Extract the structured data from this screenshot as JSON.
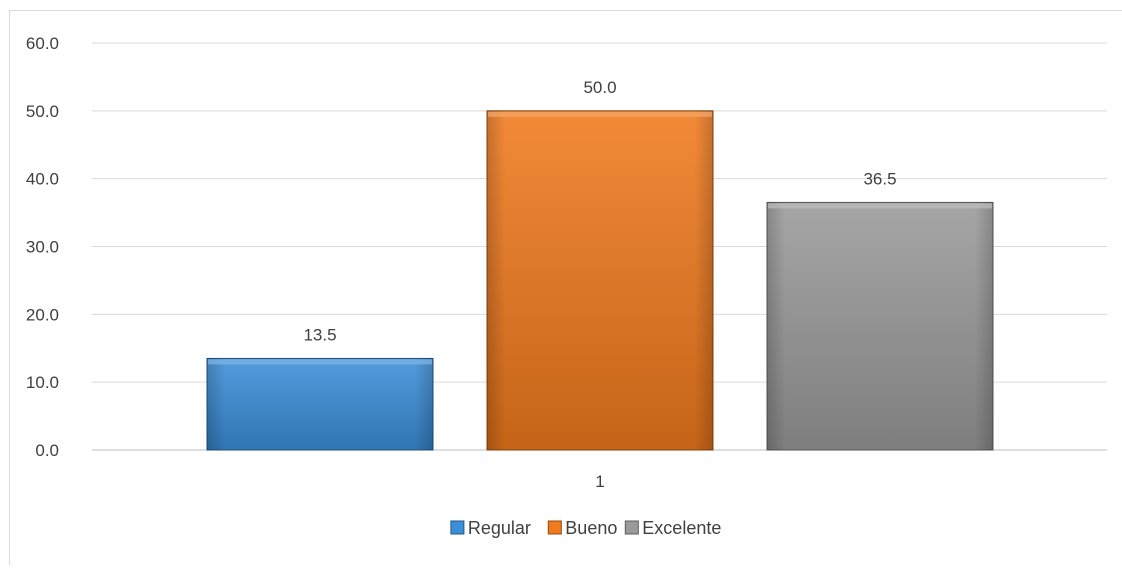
{
  "chart_data": {
    "type": "bar",
    "categories": [
      "1"
    ],
    "series": [
      {
        "name": "Regular",
        "values": [
          13.5
        ],
        "color": "#3b8fd9"
      },
      {
        "name": "Bueno",
        "values": [
          50.0
        ],
        "color": "#f07a1d"
      },
      {
        "name": "Excelente",
        "values": [
          36.5
        ],
        "color": "#9a9a9a"
      }
    ],
    "data_labels": [
      "13.5",
      "50.0",
      "36.5"
    ],
    "title": "",
    "xlabel": "",
    "ylabel": "",
    "ylim": [
      0,
      60
    ],
    "yticks": [
      0,
      10,
      20,
      30,
      40,
      50,
      60
    ],
    "ytick_labels": [
      "0.0",
      "10.0",
      "20.0",
      "30.0",
      "40.0",
      "50.0",
      "60.0"
    ],
    "grid": true,
    "legend": "bottom"
  }
}
